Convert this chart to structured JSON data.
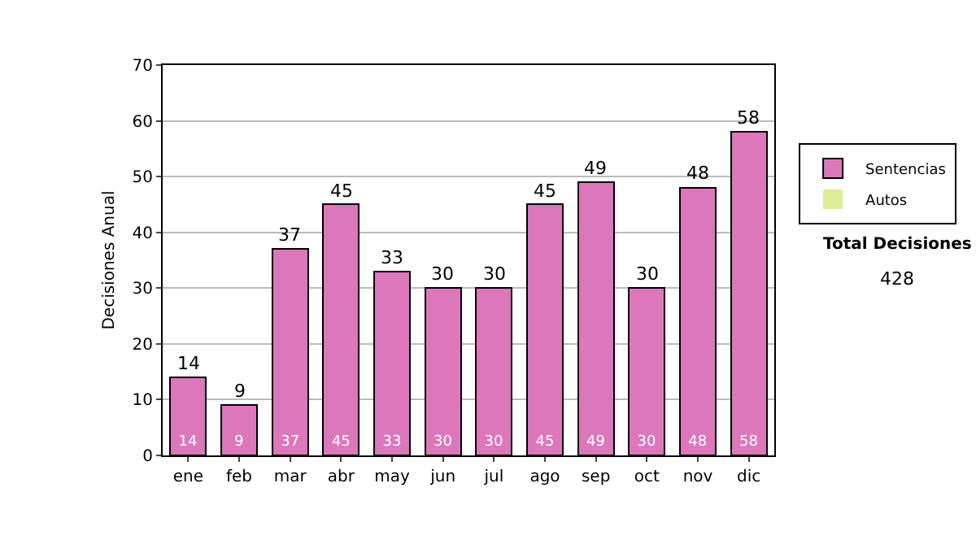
{
  "chart_data": {
    "type": "bar",
    "stacked": true,
    "ylabel": "Decisiones Anual",
    "categories": [
      "ene",
      "feb",
      "mar",
      "abr",
      "may",
      "jun",
      "jul",
      "ago",
      "sep",
      "oct",
      "nov",
      "dic"
    ],
    "series": [
      {
        "name": "Sentencias",
        "color": "#dd77bb",
        "values": [
          14,
          9,
          37,
          45,
          33,
          30,
          30,
          45,
          49,
          30,
          48,
          58
        ],
        "value_labels": [
          "14",
          "9",
          "37",
          "45",
          "33",
          "30",
          "30",
          "45",
          "49",
          "30",
          "48",
          "58"
        ]
      },
      {
        "name": "Autos",
        "color": "#ddee99",
        "values": [
          0,
          0,
          0,
          0,
          0,
          0,
          0,
          0,
          0,
          0,
          0,
          0
        ]
      }
    ],
    "totals": [
      "14",
      "9",
      "37",
      "45",
      "33",
      "30",
      "30",
      "45",
      "49",
      "30",
      "48",
      "58"
    ],
    "ylim": [
      0,
      70
    ],
    "yticks": [
      0,
      10,
      20,
      30,
      40,
      50,
      60,
      70
    ],
    "grid": "y",
    "legend": "right",
    "annotations": [
      "Total Decisiones",
      "428"
    ]
  }
}
